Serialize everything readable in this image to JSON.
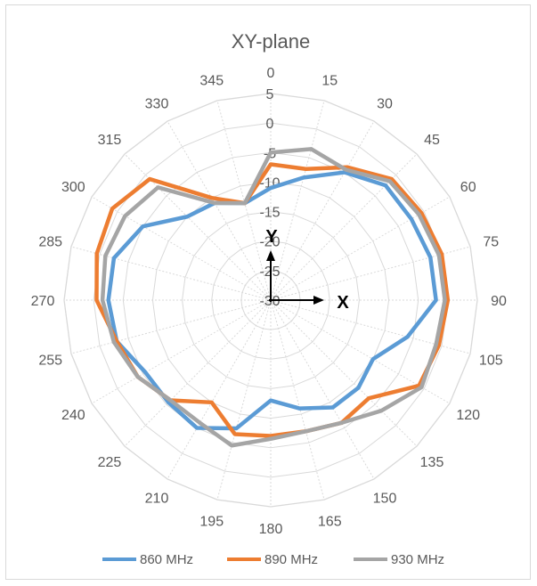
{
  "chart_data": {
    "type": "line",
    "subtype": "polar-radar",
    "title": "XY-plane",
    "angles": [
      0,
      15,
      30,
      45,
      60,
      75,
      90,
      105,
      120,
      135,
      150,
      165,
      180,
      195,
      210,
      225,
      240,
      255,
      270,
      285,
      300,
      315,
      330,
      345
    ],
    "angle_labels": [
      "0",
      "15",
      "30",
      "45",
      "60",
      "75",
      "90",
      "105",
      "120",
      "135",
      "150",
      "165",
      "180",
      "195",
      "210",
      "225",
      "240",
      "255",
      "270",
      "285",
      "300",
      "315",
      "330",
      "345"
    ],
    "radial_ticks": [
      "5",
      "0",
      "-5",
      "-10",
      "-15",
      "-20",
      "-25",
      "-30"
    ],
    "rlim": [
      -30,
      5
    ],
    "series": [
      {
        "name": "860 MHz",
        "color": "#5b9bd5",
        "values": [
          -11,
          -8.5,
          -5,
          -2.5,
          -2.5,
          -2,
          -2,
          -6,
          -10,
          -9,
          -9,
          -11,
          -13,
          -7.5,
          -5,
          -5.5,
          -5.5,
          -3,
          -2.5,
          -2.5,
          -5,
          -10,
          -11,
          -13
        ]
      },
      {
        "name": "890 MHz",
        "color": "#ed7d31",
        "values": [
          -7,
          -7,
          -4,
          -1,
          -0.5,
          0,
          0,
          -0.5,
          -1,
          -6.5,
          -6,
          -7,
          -7,
          -6.5,
          -10,
          -6,
          -4,
          -3,
          -0.5,
          0.5,
          1,
          -1,
          -10,
          -13
        ]
      },
      {
        "name": "930 MHz",
        "color": "#a5a5a5",
        "values": [
          -5,
          -3.5,
          -4.5,
          -1.5,
          -1,
          -0.5,
          -0.5,
          -1,
          -0.5,
          -3.5,
          -6,
          -7,
          -6.5,
          -4.5,
          -6,
          -6,
          -4,
          -2.5,
          -1.5,
          -1,
          -1.5,
          -3,
          -11,
          -13
        ]
      }
    ],
    "grid": true,
    "legend_position": "bottom"
  },
  "axes_annotation": {
    "y_letter": "Y",
    "x_letter": "X"
  }
}
